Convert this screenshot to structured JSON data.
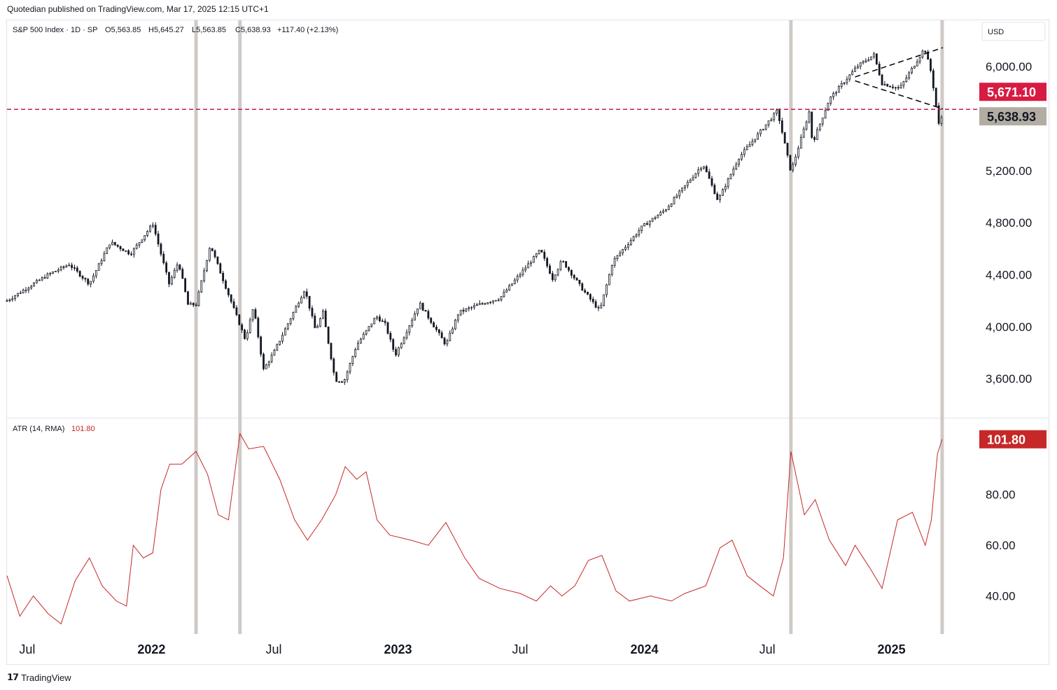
{
  "header": {
    "publisher": "Quotedian published on TradingView.com, Mar 17, 2025 12:15 UTC+1"
  },
  "footer": {
    "brand": "TradingView",
    "logo": "tradingview-logo"
  },
  "colors": {
    "candle_up": "#131722",
    "candle_down": "#131722",
    "atr_line": "#c62828",
    "hline": "#c2185b",
    "last_price_bg": "#b2aca2",
    "hline_label_bg": "#d81b42",
    "atr_label_bg": "#c62828",
    "vline": "#cfcac6"
  },
  "chart_data": [
    {
      "type": "candlestick",
      "title": "S&P 500 Index · 1D · SP",
      "ohlc_readout": {
        "open": "O5,563.85",
        "high": "H5,645.27",
        "low": "L5,563.85",
        "close": "C5,638.93",
        "change": "+117.40 (+2.13%)"
      },
      "currency": "USD",
      "ylim": [
        3300,
        6350
      ],
      "yticks": [
        "3,600.00",
        "4,000.00",
        "4,400.00",
        "4,800.00",
        "5,200.00",
        "6,000.00"
      ],
      "ytick_values": [
        3600,
        4000,
        4400,
        4800,
        5200,
        6000
      ],
      "x_range": [
        "2021-06-01",
        "2025-05-10"
      ],
      "xticks": [
        {
          "date": "2021-07-01",
          "label": "Jul"
        },
        {
          "date": "2022-01-01",
          "label": "2022"
        },
        {
          "date": "2022-07-01",
          "label": "Jul"
        },
        {
          "date": "2023-01-01",
          "label": "2023"
        },
        {
          "date": "2023-07-01",
          "label": "Jul"
        },
        {
          "date": "2024-01-01",
          "label": "2024"
        },
        {
          "date": "2024-07-01",
          "label": "Jul"
        },
        {
          "date": "2025-01-01",
          "label": "2025"
        }
      ],
      "close_series": [
        [
          "2021-06-01",
          4200
        ],
        [
          "2021-07-01",
          4300
        ],
        [
          "2021-08-01",
          4400
        ],
        [
          "2021-09-01",
          4480
        ],
        [
          "2021-10-01",
          4330
        ],
        [
          "2021-11-01",
          4650
        ],
        [
          "2021-12-01",
          4560
        ],
        [
          "2022-01-03",
          4790
        ],
        [
          "2022-01-27",
          4330
        ],
        [
          "2022-02-10",
          4500
        ],
        [
          "2022-02-24",
          4170
        ],
        [
          "2022-03-08",
          4170
        ],
        [
          "2022-03-29",
          4630
        ],
        [
          "2022-04-15",
          4390
        ],
        [
          "2022-05-02",
          4150
        ],
        [
          "2022-05-20",
          3900
        ],
        [
          "2022-06-01",
          4150
        ],
        [
          "2022-06-16",
          3670
        ],
        [
          "2022-07-01",
          3800
        ],
        [
          "2022-08-16",
          4290
        ],
        [
          "2022-09-01",
          3970
        ],
        [
          "2022-09-12",
          4110
        ],
        [
          "2022-09-30",
          3590
        ],
        [
          "2022-10-13",
          3580
        ],
        [
          "2022-11-01",
          3860
        ],
        [
          "2022-11-30",
          4080
        ],
        [
          "2022-12-13",
          4020
        ],
        [
          "2022-12-28",
          3780
        ],
        [
          "2023-02-02",
          4180
        ],
        [
          "2023-03-13",
          3860
        ],
        [
          "2023-04-01",
          4110
        ],
        [
          "2023-05-01",
          4170
        ],
        [
          "2023-06-01",
          4220
        ],
        [
          "2023-07-31",
          4590
        ],
        [
          "2023-08-18",
          4370
        ],
        [
          "2023-09-01",
          4510
        ],
        [
          "2023-10-01",
          4290
        ],
        [
          "2023-10-27",
          4120
        ],
        [
          "2023-11-15",
          4500
        ],
        [
          "2023-12-29",
          4770
        ],
        [
          "2024-02-01",
          4900
        ],
        [
          "2024-03-28",
          5250
        ],
        [
          "2024-04-19",
          4970
        ],
        [
          "2024-05-20",
          5300
        ],
        [
          "2024-07-16",
          5660
        ],
        [
          "2024-08-05",
          5190
        ],
        [
          "2024-09-01",
          5650
        ],
        [
          "2024-09-06",
          5410
        ],
        [
          "2024-10-01",
          5750
        ],
        [
          "2024-11-11",
          6000
        ],
        [
          "2024-12-06",
          6090
        ],
        [
          "2024-12-18",
          5870
        ],
        [
          "2025-01-13",
          5830
        ],
        [
          "2025-02-19",
          6140
        ],
        [
          "2025-03-01",
          5950
        ],
        [
          "2025-03-13",
          5520
        ],
        [
          "2025-03-17",
          5638.93
        ]
      ],
      "horizontal_line": {
        "value": 5671.1,
        "label": "5,671.10"
      },
      "last_price": {
        "value": 5638.93,
        "label": "5,638.93"
      },
      "trendlines": [
        {
          "from": [
            "2024-11-08",
            5920
          ],
          "to": [
            "2025-03-18",
            6145
          ]
        },
        {
          "from": [
            "2024-11-08",
            5890
          ],
          "to": [
            "2025-03-18",
            5675
          ]
        }
      ],
      "vertical_markers": [
        "2022-03-08",
        "2022-05-12",
        "2024-08-05",
        "2025-03-17"
      ]
    },
    {
      "type": "line",
      "title": "ATR (14, RMA)",
      "value_label": "101.80",
      "ylim": [
        25,
        110
      ],
      "yticks": [
        "40.00",
        "60.00",
        "80.00"
      ],
      "ytick_values": [
        40,
        60,
        80
      ],
      "series": [
        {
          "values": [
            [
              "2021-06-01",
              48
            ],
            [
              "2021-06-20",
              32
            ],
            [
              "2021-07-10",
              40
            ],
            [
              "2021-08-01",
              33
            ],
            [
              "2021-08-20",
              29
            ],
            [
              "2021-09-10",
              46
            ],
            [
              "2021-10-01",
              55
            ],
            [
              "2021-10-20",
              44
            ],
            [
              "2021-11-10",
              38
            ],
            [
              "2021-11-25",
              36
            ],
            [
              "2021-12-05",
              60
            ],
            [
              "2021-12-20",
              55
            ],
            [
              "2022-01-03",
              57
            ],
            [
              "2022-01-15",
              82
            ],
            [
              "2022-01-28",
              92
            ],
            [
              "2022-02-15",
              92
            ],
            [
              "2022-03-08",
              97
            ],
            [
              "2022-03-25",
              88
            ],
            [
              "2022-04-10",
              72
            ],
            [
              "2022-04-25",
              70
            ],
            [
              "2022-05-12",
              104
            ],
            [
              "2022-05-25",
              98
            ],
            [
              "2022-06-16",
              99
            ],
            [
              "2022-07-10",
              86
            ],
            [
              "2022-08-01",
              70
            ],
            [
              "2022-08-20",
              62
            ],
            [
              "2022-09-10",
              70
            ],
            [
              "2022-10-01",
              80
            ],
            [
              "2022-10-15",
              91
            ],
            [
              "2022-11-01",
              86
            ],
            [
              "2022-11-15",
              89
            ],
            [
              "2022-12-01",
              70
            ],
            [
              "2022-12-20",
              64
            ],
            [
              "2023-01-20",
              62
            ],
            [
              "2023-02-15",
              60
            ],
            [
              "2023-03-13",
              69
            ],
            [
              "2023-04-10",
              55
            ],
            [
              "2023-05-01",
              47
            ],
            [
              "2023-06-01",
              43
            ],
            [
              "2023-07-01",
              41
            ],
            [
              "2023-07-25",
              38
            ],
            [
              "2023-08-15",
              44
            ],
            [
              "2023-09-01",
              40
            ],
            [
              "2023-09-20",
              44
            ],
            [
              "2023-10-10",
              54
            ],
            [
              "2023-10-30",
              56
            ],
            [
              "2023-11-20",
              42
            ],
            [
              "2023-12-10",
              38
            ],
            [
              "2024-01-10",
              40
            ],
            [
              "2024-02-10",
              38
            ],
            [
              "2024-03-01",
              41
            ],
            [
              "2024-04-01",
              44
            ],
            [
              "2024-04-22",
              59
            ],
            [
              "2024-05-10",
              62
            ],
            [
              "2024-06-01",
              48
            ],
            [
              "2024-06-20",
              44
            ],
            [
              "2024-07-10",
              40
            ],
            [
              "2024-07-25",
              55
            ],
            [
              "2024-08-05",
              97
            ],
            [
              "2024-08-25",
              72
            ],
            [
              "2024-09-10",
              78
            ],
            [
              "2024-10-01",
              62
            ],
            [
              "2024-10-25",
              52
            ],
            [
              "2024-11-08",
              60
            ],
            [
              "2024-11-30",
              51
            ],
            [
              "2024-12-18",
              43
            ],
            [
              "2025-01-10",
              70
            ],
            [
              "2025-02-01",
              73
            ],
            [
              "2025-02-20",
              60
            ],
            [
              "2025-03-01",
              70
            ],
            [
              "2025-03-10",
              96
            ],
            [
              "2025-03-17",
              101.8
            ]
          ]
        }
      ]
    }
  ]
}
